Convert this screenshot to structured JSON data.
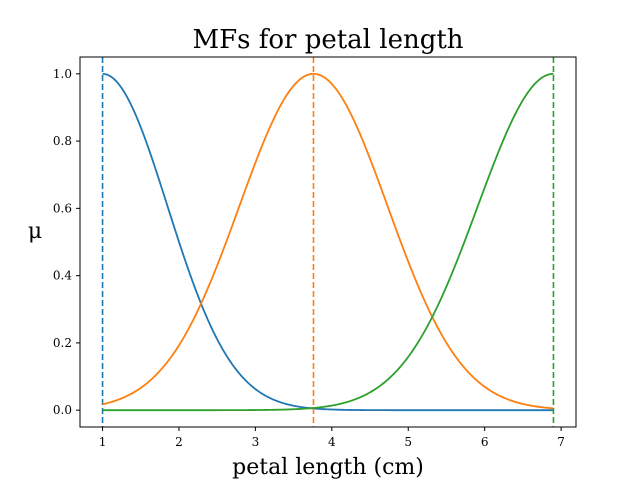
{
  "chart_data": {
    "type": "line",
    "title": "MFs for petal length",
    "xlabel": "petal length (cm)",
    "ylabel": "μ",
    "xlim": [
      0.705,
      7.195
    ],
    "ylim": [
      -0.05,
      1.05
    ],
    "xticks": [
      1,
      2,
      3,
      4,
      5,
      6,
      7
    ],
    "yticks": [
      0.0,
      0.2,
      0.4,
      0.6,
      0.8,
      1.0
    ],
    "ytick_labels": [
      "0.0",
      "0.2",
      "0.4",
      "0.6",
      "0.8",
      "1.0"
    ],
    "x_domain": [
      1.0,
      6.9
    ],
    "grid": false,
    "legend": "none",
    "series": [
      {
        "type": "gaussian",
        "mean": 1.0,
        "sigma": 0.85,
        "color": "#1f77b4",
        "center_marker": "dashed-vertical"
      },
      {
        "type": "gaussian",
        "mean": 3.76,
        "sigma": 0.97,
        "color": "#ff7f0e",
        "center_marker": "dashed-vertical"
      },
      {
        "type": "gaussian",
        "mean": 6.9,
        "sigma": 0.99,
        "color": "#2ca02c",
        "center_marker": "dashed-vertical"
      }
    ]
  }
}
